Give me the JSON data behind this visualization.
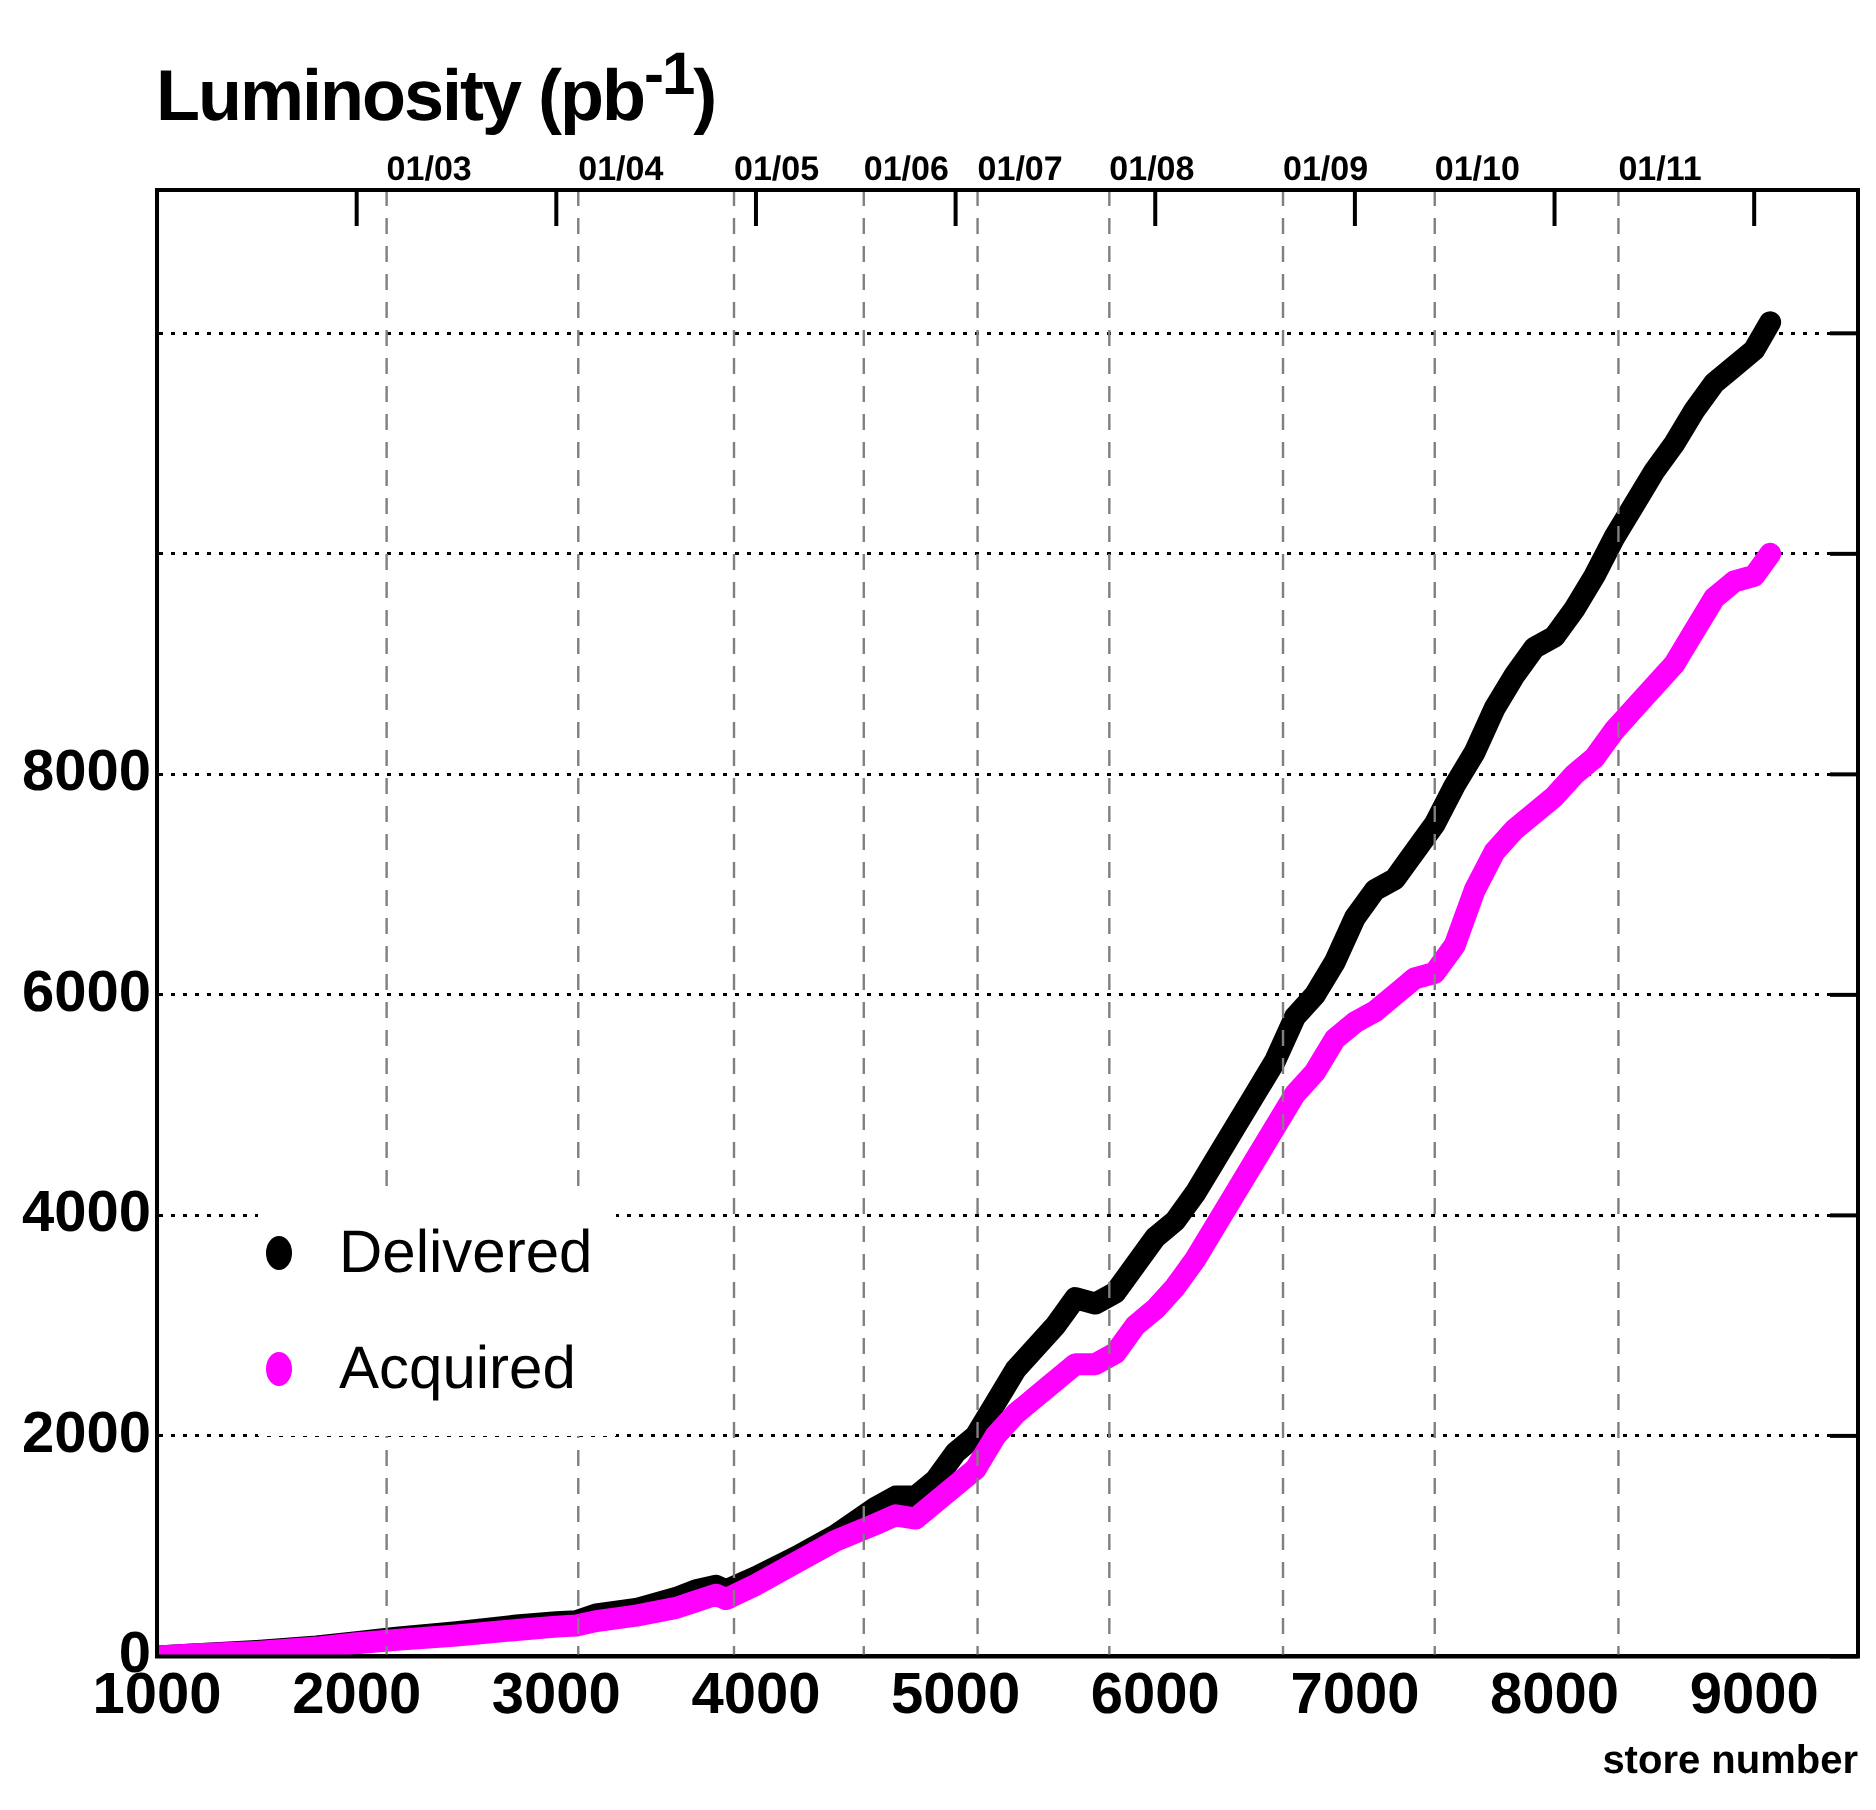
{
  "chart_data": {
    "type": "line",
    "title": "Luminosity (pb$^{-1}$)",
    "xlabel": "store number",
    "x": [
      1000,
      1200,
      1500,
      1800,
      2000,
      2200,
      2500,
      2800,
      3000,
      3100,
      3200,
      3400,
      3600,
      3700,
      3800,
      3850,
      4000,
      4200,
      4400,
      4600,
      4700,
      4800,
      4900,
      5000,
      5100,
      5200,
      5300,
      5400,
      5500,
      5600,
      5700,
      5800,
      5900,
      6000,
      6100,
      6200,
      6300,
      6400,
      6500,
      6600,
      6700,
      6800,
      6900,
      7000,
      7100,
      7200,
      7300,
      7400,
      7500,
      7600,
      7700,
      7800,
      7900,
      8000,
      8100,
      8200,
      8300,
      8400,
      8500,
      8600,
      8700,
      8800,
      8900,
      9000,
      9080
    ],
    "series": [
      {
        "name": "Delivered",
        "color": "#000000",
        "values": [
          0,
          20,
          50,
          90,
          130,
          170,
          220,
          280,
          310,
          320,
          380,
          430,
          530,
          600,
          640,
          600,
          720,
          900,
          1100,
          1350,
          1450,
          1450,
          1600,
          1850,
          2000,
          2300,
          2600,
          2800,
          3000,
          3250,
          3200,
          3300,
          3550,
          3800,
          3950,
          4200,
          4500,
          4800,
          5100,
          5400,
          5800,
          6000,
          6300,
          6700,
          6950,
          7050,
          7300,
          7550,
          7900,
          8200,
          8600,
          8900,
          9150,
          9250,
          9500,
          9800,
          10150,
          10450,
          10750,
          11000,
          11300,
          11550,
          11700,
          11850,
          12100
        ]
      },
      {
        "name": "Acquired",
        "color": "#ff00ff",
        "values": [
          0,
          20,
          40,
          80,
          120,
          150,
          190,
          240,
          270,
          280,
          320,
          370,
          440,
          500,
          560,
          520,
          650,
          850,
          1050,
          1200,
          1280,
          1250,
          1400,
          1550,
          1700,
          2000,
          2200,
          2350,
          2500,
          2650,
          2650,
          2750,
          3000,
          3150,
          3350,
          3600,
          3900,
          4200,
          4500,
          4800,
          5100,
          5300,
          5600,
          5750,
          5850,
          6000,
          6150,
          6200,
          6450,
          6950,
          7300,
          7500,
          7650,
          7800,
          8000,
          8150,
          8400,
          8600,
          8800,
          9000,
          9300,
          9600,
          9750,
          9800,
          10000
        ]
      }
    ],
    "xlim": [
      1000,
      9520
    ],
    "xticks": [
      1000,
      2000,
      3000,
      4000,
      5000,
      6000,
      7000,
      8000,
      9000
    ],
    "ylim": [
      0,
      13300
    ],
    "yticks": [
      0,
      2000,
      4000,
      6000,
      8000,
      {
        "value": 10000,
        "label": null
      },
      {
        "value": 12000,
        "label": null
      }
    ],
    "ref_lines": [
      {
        "axis": "x",
        "value": 2150,
        "line_style": "dashed",
        "color": "#808080"
      },
      {
        "axis": "x",
        "value": 3110,
        "line_style": "dashed",
        "color": "#808080"
      },
      {
        "axis": "x",
        "value": 3890,
        "line_style": "dashed",
        "color": "#808080"
      },
      {
        "axis": "x",
        "value": 4540,
        "line_style": "dashed",
        "color": "#808080"
      },
      {
        "axis": "x",
        "value": 5110,
        "line_style": "dashed",
        "color": "#808080"
      },
      {
        "axis": "x",
        "value": 5770,
        "line_style": "dashed",
        "color": "#808080"
      },
      {
        "axis": "x",
        "value": 6640,
        "line_style": "dashed",
        "color": "#808080"
      },
      {
        "axis": "x",
        "value": 7400,
        "line_style": "dashed",
        "color": "#808080"
      },
      {
        "axis": "x",
        "value": 8320,
        "line_style": "dashed",
        "color": "#808080"
      }
    ],
    "annotations": [
      "01/03",
      "01/04",
      "01/05",
      "01/06",
      "01/07",
      "01/08",
      "01/09",
      "01/10",
      "01/11"
    ],
    "grid": "y",
    "legend": "left",
    "marker": "none"
  }
}
